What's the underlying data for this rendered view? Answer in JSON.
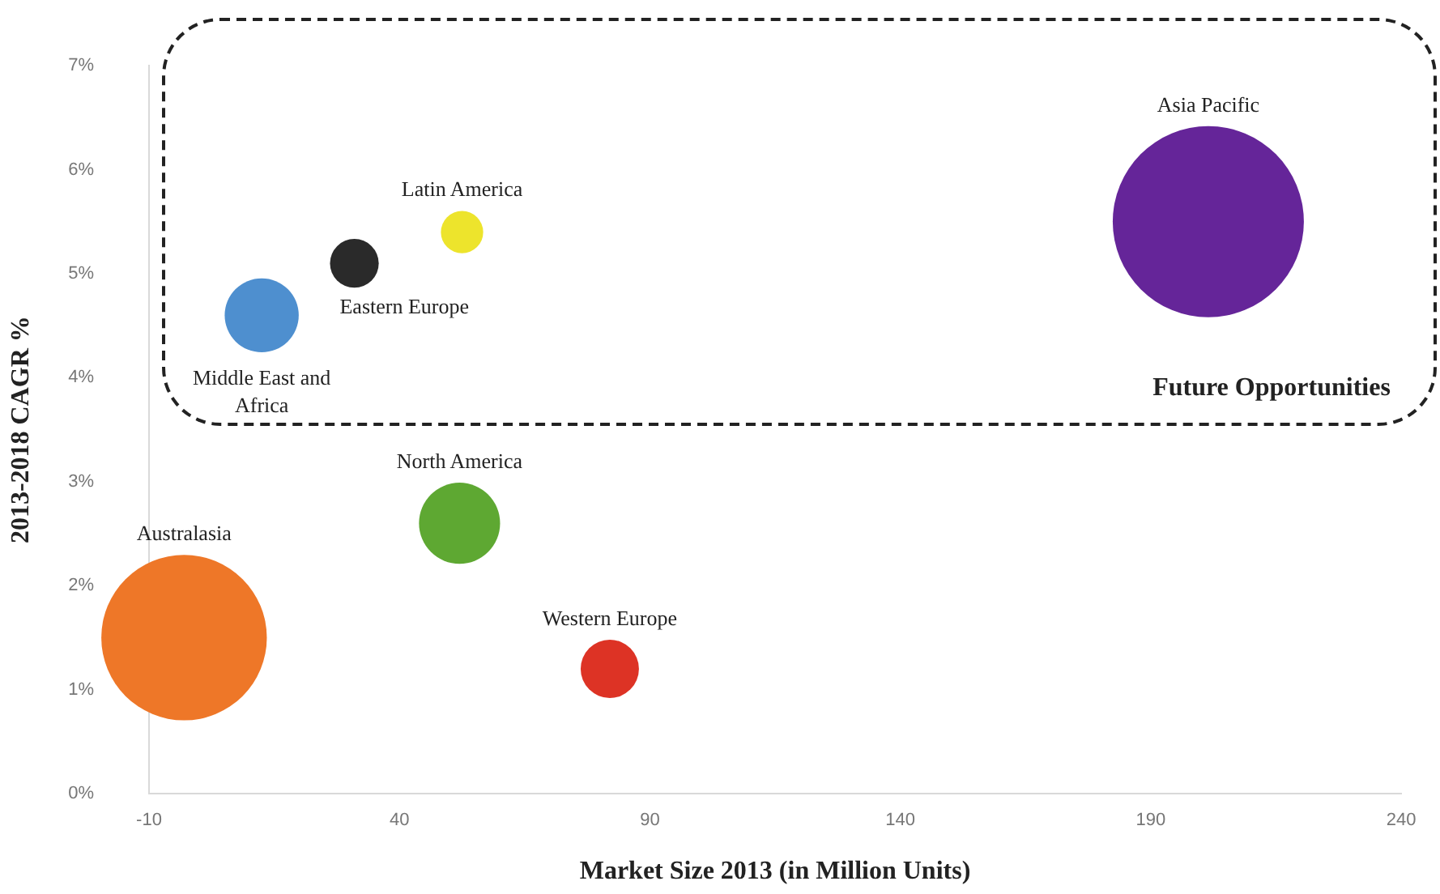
{
  "chart_data": {
    "type": "bubble",
    "xlabel": "Market Size 2013 (in Million Units)",
    "ylabel": "2013-2018 CAGR %",
    "xlim": [
      -10,
      240
    ],
    "xticks": [
      -10,
      40,
      90,
      140,
      190,
      240
    ],
    "ylim": [
      0,
      7
    ],
    "yticks": [
      {
        "value": 0,
        "label": "0%"
      },
      {
        "value": 1,
        "label": "1%"
      },
      {
        "value": 2,
        "label": "2%"
      },
      {
        "value": 3,
        "label": "3%"
      },
      {
        "value": 4,
        "label": "4%"
      },
      {
        "value": 5,
        "label": "5%"
      },
      {
        "value": 6,
        "label": "6%"
      },
      {
        "value": 7,
        "label": "7%"
      }
    ],
    "grid": false,
    "legend": false,
    "annotations": [
      "Future Opportunities"
    ],
    "series": [
      {
        "name": "Asia Pacific",
        "color": "#652599",
        "x": [
          201.5
        ],
        "values": [
          5.5
        ],
        "sizes": [
          1
        ]
      },
      {
        "name": "Latin America",
        "color": "#ede42c",
        "x": [
          52.5
        ],
        "values": [
          5.4
        ],
        "sizes": [
          0.049
        ]
      },
      {
        "name": "Eastern Europe",
        "color": "#2a2a2a",
        "x": [
          31
        ],
        "values": [
          5.1
        ],
        "sizes": [
          0.065
        ]
      },
      {
        "name": "Middle East and Africa",
        "color": "#4e8fcf",
        "x": [
          12.5
        ],
        "values": [
          4.6
        ],
        "sizes": [
          0.15
        ]
      },
      {
        "name": "North America",
        "color": "#5ea832",
        "x": [
          52
        ],
        "values": [
          2.6
        ],
        "sizes": [
          0.18
        ]
      },
      {
        "name": "Australasia",
        "color": "#ee7728",
        "x": [
          -3
        ],
        "values": [
          1.5
        ],
        "sizes": [
          0.75
        ]
      },
      {
        "name": "Western Europe",
        "color": "#dd3325",
        "x": [
          82
        ],
        "values": [
          1.2
        ],
        "sizes": [
          0.093
        ]
      }
    ]
  }
}
